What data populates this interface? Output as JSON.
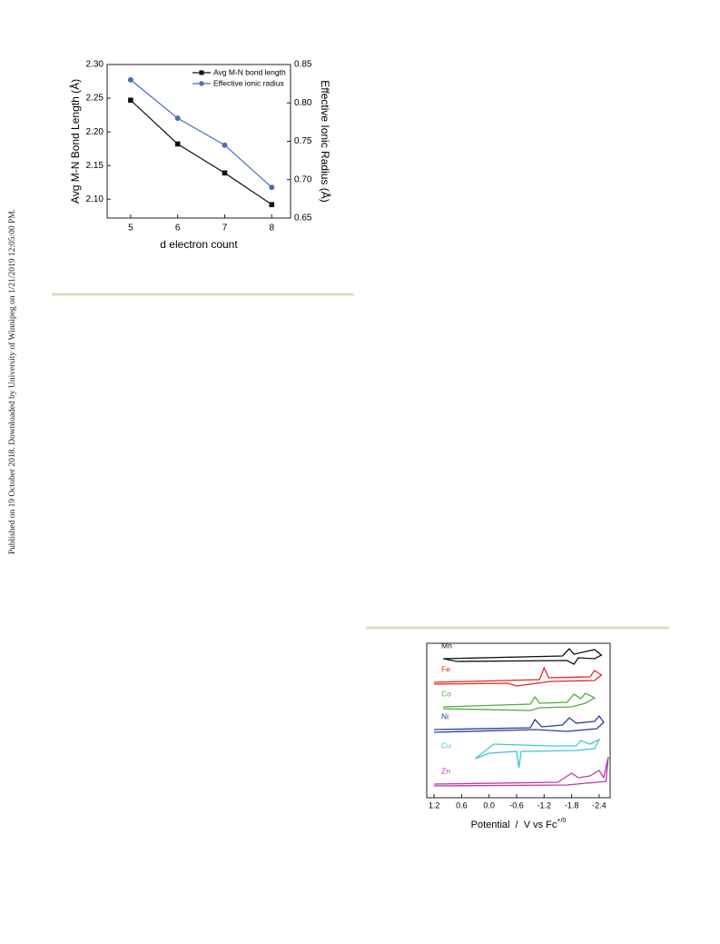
{
  "side_note": "Published on 19 October 2018. Downloaded by University of Winnipeg on 1/21/2019 12:05:00 PM.",
  "chart_data": [
    {
      "type": "line",
      "x_label": "d electron count",
      "y_label": "Avg M-N Bond Length (Å)",
      "y2_label": "Effective Ionic Radius (Å)",
      "x": [
        5,
        6,
        7,
        8
      ],
      "xlim": [
        4.5,
        8.4
      ],
      "xticks": [
        5,
        6,
        7,
        8
      ],
      "ylim": [
        2.072,
        2.3
      ],
      "yticks": [
        {
          "value": 2.3,
          "label": "2.30"
        },
        2.25,
        {
          "value": 2.2,
          "label": "2.20"
        },
        2.15,
        {
          "value": 2.1,
          "label": "2.10"
        }
      ],
      "y2lim": [
        0.65,
        0.85
      ],
      "y2ticks": [
        0.85,
        {
          "value": 0.8,
          "label": "0.80"
        },
        0.75,
        {
          "value": 0.7,
          "label": "0.70"
        },
        0.65
      ],
      "legend": "upper right",
      "series": [
        {
          "name": "Avg M-N bond length",
          "color": "#111111",
          "marker": "square",
          "values": [
            2.247,
            2.182,
            2.139,
            2.092
          ]
        },
        {
          "name": "Effective ionic radius",
          "color": "#4a6fb5",
          "marker": "circle",
          "axis": "y2",
          "values": [
            0.83,
            0.78,
            0.745,
            0.69
          ]
        }
      ]
    },
    {
      "type": "cv",
      "x_label": "Potential  /  V vs Fc",
      "x_label_superscript": "+/0",
      "xlim": [
        1.36,
        -2.64
      ],
      "xticks": [
        1.2,
        0.6,
        {
          "value": 0,
          "label": "0.0"
        },
        -0.6,
        -1.2,
        -1.8,
        -2.4
      ],
      "ylim": [
        0,
        17
      ],
      "series": [
        {
          "name": "Mn",
          "color": "#111111",
          "x": [
            1.0,
            -1.6,
            -1.75,
            -1.85,
            -2.3,
            -2.45,
            -2.3,
            -1.95,
            -1.85,
            -1.7,
            0.7,
            1.0
          ],
          "values": [
            15.3,
            15.6,
            16.4,
            15.8,
            16.3,
            15.7,
            15.3,
            15.4,
            14.7,
            15.1,
            15.0,
            15.3
          ]
        },
        {
          "name": "Fe",
          "color": "#e8261f",
          "x": [
            1.2,
            -1.1,
            -1.2,
            -1.3,
            -2.2,
            -2.3,
            -2.45,
            -2.3,
            -1.35,
            -0.6,
            -0.4,
            1.2
          ],
          "values": [
            12.7,
            13.0,
            14.3,
            13.2,
            13.3,
            14.0,
            13.5,
            12.9,
            12.8,
            12.3,
            12.6,
            12.5
          ]
        },
        {
          "name": "Co",
          "color": "#4caf3a",
          "x": [
            1.0,
            -0.9,
            -1.0,
            -1.1,
            -1.7,
            -1.85,
            -2.0,
            -2.1,
            -2.3,
            -2.1,
            -1.8,
            -1.1,
            -0.9,
            1.0
          ],
          "values": [
            10.0,
            10.3,
            11.1,
            10.4,
            10.5,
            11.4,
            10.9,
            11.5,
            11.0,
            10.4,
            10.0,
            9.9,
            9.6,
            9.8
          ]
        },
        {
          "name": "Ni",
          "color": "#2c3e9a",
          "x": [
            1.2,
            -0.9,
            -1.0,
            -1.15,
            -1.6,
            -1.75,
            -1.9,
            -2.3,
            -2.4,
            -2.5,
            -2.35,
            -1.7,
            -1.0,
            1.2
          ],
          "values": [
            7.5,
            7.7,
            8.6,
            7.8,
            8.0,
            8.8,
            8.2,
            8.4,
            9.0,
            8.3,
            7.6,
            7.3,
            7.5,
            7.2
          ]
        },
        {
          "name": "Cu",
          "color": "#45c3dc",
          "x": [
            0.3,
            0.05,
            -0.1,
            -1.3,
            -1.9,
            -2.0,
            -2.2,
            -2.4,
            -2.3,
            -1.9,
            -0.7,
            -0.65,
            -0.6,
            0.0,
            0.3
          ],
          "values": [
            4.3,
            5.3,
            5.9,
            5.7,
            5.7,
            6.3,
            5.9,
            6.4,
            5.4,
            5.2,
            5.1,
            3.3,
            5.1,
            4.9,
            4.3
          ]
        },
        {
          "name": "Zn",
          "color": "#b83bb0",
          "x": [
            1.2,
            -1.5,
            -1.8,
            -1.95,
            -2.2,
            -2.4,
            -2.5,
            -2.6,
            -2.55,
            -1.7,
            1.2
          ],
          "values": [
            1.5,
            1.7,
            2.7,
            2.2,
            2.4,
            3.0,
            2.2,
            4.5,
            1.8,
            1.4,
            1.3
          ]
        }
      ]
    }
  ]
}
